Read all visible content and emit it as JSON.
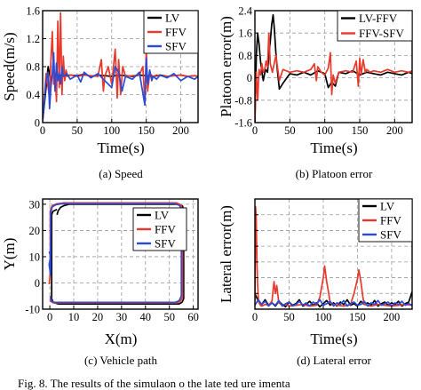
{
  "chart_data": [
    {
      "id": "a",
      "type": "line",
      "caption": "(a)  Speed",
      "xlabel": "Time(s)",
      "ylabel": "Speed(m/s)",
      "xlim": [
        0,
        225
      ],
      "ylim": [
        0,
        1.6
      ],
      "xticks": [
        0,
        50,
        100,
        150,
        200
      ],
      "yticks": [
        0,
        0.4,
        0.8,
        1.2,
        1.6
      ],
      "ytick_labels": [
        "0",
        "0.4",
        "0.8",
        "1.2",
        "1.6"
      ],
      "grid": true,
      "legend": "top-right",
      "series": [
        {
          "name": "LV",
          "color": "#000000",
          "x": [
            0,
            5,
            8,
            10,
            12,
            14,
            16,
            18,
            20,
            25,
            30,
            40,
            50,
            60,
            70,
            80,
            90,
            100,
            110,
            120,
            130,
            140,
            150,
            160,
            170,
            180,
            190,
            200,
            210,
            220,
            225
          ],
          "y": [
            0.02,
            0.5,
            0.8,
            0.7,
            0.6,
            0.68,
            0.66,
            0.7,
            0.67,
            0.68,
            0.66,
            0.68,
            0.67,
            0.69,
            0.66,
            0.68,
            0.67,
            0.66,
            0.68,
            0.67,
            0.66,
            0.68,
            0.67,
            0.66,
            0.68,
            0.66,
            0.67,
            0.68,
            0.66,
            0.67,
            0.66
          ]
        },
        {
          "name": "FFV",
          "color": "#e8392c",
          "x": [
            0,
            5,
            8,
            10,
            12,
            14,
            16,
            18,
            20,
            22,
            24,
            26,
            28,
            30,
            32,
            34,
            36,
            40,
            45,
            50,
            60,
            70,
            80,
            85,
            88,
            90,
            95,
            100,
            105,
            108,
            110,
            113,
            116,
            120,
            130,
            140,
            145,
            148,
            150,
            152,
            155,
            160,
            165,
            170,
            180,
            190,
            200,
            210,
            220,
            225
          ],
          "y": [
            0.02,
            0.7,
            0.5,
            0.35,
            0.9,
            1.3,
            0.55,
            0.7,
            0.3,
            1.45,
            0.5,
            1.57,
            0.4,
            0.95,
            0.6,
            0.75,
            0.66,
            0.68,
            0.67,
            0.66,
            0.68,
            0.67,
            0.66,
            0.9,
            0.45,
            0.66,
            0.8,
            0.55,
            1.05,
            0.35,
            0.9,
            0.4,
            0.8,
            0.66,
            0.67,
            0.68,
            0.8,
            0.3,
            1.05,
            0.45,
            0.7,
            0.66,
            0.68,
            0.67,
            0.66,
            0.67,
            0.68,
            0.66,
            0.67,
            0.66
          ]
        },
        {
          "name": "SFV",
          "color": "#2a4bd7",
          "x": [
            0,
            5,
            8,
            10,
            12,
            14,
            16,
            18,
            20,
            22,
            24,
            26,
            28,
            30,
            35,
            40,
            50,
            55,
            60,
            70,
            80,
            90,
            100,
            105,
            110,
            115,
            120,
            130,
            140,
            148,
            150,
            152,
            155,
            158,
            160,
            165,
            170,
            180,
            190,
            200,
            210,
            220,
            225
          ],
          "y": [
            0.02,
            0.6,
            0.72,
            0.2,
            0.5,
            0.7,
            1.0,
            0.45,
            0.85,
            0.6,
            0.7,
            0.55,
            0.8,
            0.66,
            0.7,
            0.62,
            0.68,
            0.58,
            0.72,
            0.64,
            0.7,
            0.6,
            0.5,
            0.8,
            0.72,
            0.45,
            0.66,
            0.62,
            0.72,
            0.25,
            0.92,
            0.55,
            0.75,
            0.6,
            0.66,
            0.62,
            0.68,
            0.64,
            0.7,
            0.6,
            0.66,
            0.62,
            0.66
          ]
        }
      ]
    },
    {
      "id": "b",
      "type": "line",
      "caption": "(b)  Platoon error",
      "xlabel": "Time(s)",
      "ylabel": "Platoon error(m)",
      "xlim": [
        0,
        225
      ],
      "ylim": [
        -1.6,
        2.4
      ],
      "xticks": [
        0,
        50,
        100,
        150,
        200
      ],
      "yticks": [
        -1.6,
        -0.8,
        0,
        0.8,
        1.6,
        2.4
      ],
      "ytick_labels": [
        "-1.6",
        "-0.8",
        "0",
        "0.8",
        "1.6",
        "2.4"
      ],
      "grid": true,
      "legend": "top-right",
      "series": [
        {
          "name": "LV-FFV",
          "color": "#000000",
          "x": [
            0,
            2,
            4,
            6,
            8,
            10,
            12,
            15,
            18,
            20,
            22,
            24,
            26,
            28,
            30,
            32,
            35,
            40,
            50,
            60,
            70,
            80,
            90,
            100,
            105,
            110,
            115,
            120,
            130,
            140,
            150,
            160,
            170,
            180,
            190,
            200,
            210,
            220,
            225
          ],
          "y": [
            -1.6,
            0.8,
            1.6,
            1.2,
            0.6,
            0.2,
            -0.1,
            0.3,
            0.2,
            0.8,
            1.3,
            1.9,
            2.25,
            1.7,
            0.9,
            0.3,
            -0.4,
            -0.2,
            0.15,
            0.1,
            0.2,
            0.1,
            0.25,
            0.15,
            -0.35,
            -0.15,
            -0.3,
            0.2,
            0.15,
            0.25,
            0.1,
            0.2,
            0.15,
            0.1,
            0.2,
            0.15,
            0.1,
            0.2,
            0.15
          ]
        },
        {
          "name": "FFV-SFV",
          "color": "#e8392c",
          "x": [
            0,
            2,
            4,
            6,
            8,
            10,
            12,
            14,
            16,
            18,
            20,
            22,
            25,
            30,
            35,
            40,
            50,
            60,
            70,
            80,
            85,
            88,
            90,
            95,
            100,
            105,
            108,
            110,
            112,
            115,
            120,
            130,
            140,
            145,
            148,
            150,
            152,
            155,
            158,
            160,
            165,
            170,
            180,
            190,
            200,
            210,
            220,
            225
          ],
          "y": [
            -1.5,
            0.2,
            -0.8,
            0.3,
            0.1,
            0.5,
            0.2,
            0.3,
            0.6,
            0.4,
            1.6,
            0.5,
            0.2,
            0.8,
            -0.1,
            0.3,
            0.2,
            0.25,
            0.2,
            0.3,
            0.5,
            -0.1,
            0.4,
            0.2,
            0.1,
            0.35,
            0.9,
            -0.6,
            0.1,
            -0.2,
            0.2,
            0.25,
            0.2,
            0.6,
            -0.3,
            0.7,
            0.1,
            0.65,
            0.2,
            0.3,
            0.2,
            0.25,
            0.2,
            0.3,
            0.2,
            0.25,
            0.2,
            0.25
          ]
        }
      ]
    },
    {
      "id": "c",
      "type": "line",
      "caption": "(c)  Vehicle path",
      "xlabel": "X(m)",
      "ylabel": "Y(m)",
      "xlim": [
        -3,
        62
      ],
      "ylim": [
        -10,
        32
      ],
      "xticks": [
        0,
        10,
        20,
        30,
        40,
        50,
        60
      ],
      "yticks": [
        -10,
        0,
        10,
        20,
        30
      ],
      "ytick_labels": [
        "-10",
        "0",
        "10",
        "20",
        "30"
      ],
      "grid": true,
      "legend": "middle-right",
      "series": [
        {
          "name": "LV",
          "color": "#000000",
          "x": [
            3,
            3.5,
            4.5,
            6,
            8,
            54,
            55.5,
            56,
            56,
            55.3,
            54,
            3.5,
            1.5,
            0.8,
            0.8,
            1.3,
            2.5,
            3
          ],
          "y": [
            26,
            27.5,
            28.8,
            29.5,
            30,
            30,
            29.3,
            28,
            -6,
            -7.4,
            -8,
            -8,
            -7.5,
            -6,
            26,
            27.3,
            27.8,
            28
          ]
        },
        {
          "name": "FFV",
          "color": "#e8392c",
          "x": [
            -0.3,
            0,
            0.2,
            0.2,
            1,
            3,
            6,
            53,
            54.8,
            55.5,
            55.5,
            54.6,
            53,
            1.5,
            0.4,
            0.2
          ],
          "y": [
            -0.5,
            2,
            5,
            27.5,
            29.5,
            30.2,
            30.5,
            30.5,
            29.8,
            28,
            -5.5,
            -7,
            -7.6,
            -7.6,
            -7,
            -5
          ]
        },
        {
          "name": "SFV",
          "color": "#2a4bd7",
          "x": [
            -0.2,
            0.3,
            -0.3,
            0.3,
            0.4,
            1,
            2.5,
            5,
            52.5,
            54.3,
            55,
            55,
            54,
            52.5,
            1.8,
            0.6,
            0.4
          ],
          "y": [
            12,
            10,
            7,
            3,
            27,
            29,
            29.8,
            30.2,
            30.2,
            29.5,
            27.7,
            -5,
            -6.8,
            -7.4,
            -7.4,
            -6.8,
            -5
          ]
        }
      ]
    },
    {
      "id": "d",
      "type": "line",
      "caption": "(d)  Lateral error",
      "xlabel": "Time(s)",
      "ylabel": "Lateral error(m)",
      "xlim": [
        0,
        230
      ],
      "ylim": [
        0,
        1.4
      ],
      "xticks": [
        0,
        50,
        100,
        150,
        200
      ],
      "yticks": [
        0,
        0.2,
        0.4,
        0.6,
        0.8,
        1.0,
        1.2,
        1.4
      ],
      "ytick_labels": [
        "",
        "",
        "",
        "",
        "",
        "",
        "",
        ""
      ],
      "grid": true,
      "legend": "top-right",
      "series": [
        {
          "name": "LV",
          "color": "#000000",
          "x": [
            0,
            5,
            10,
            15,
            20,
            25,
            30,
            35,
            40,
            45,
            50,
            55,
            60,
            65,
            70,
            75,
            80,
            85,
            90,
            95,
            100,
            105,
            110,
            115,
            120,
            125,
            130,
            135,
            140,
            145,
            150,
            155,
            160,
            165,
            170,
            175,
            180,
            185,
            190,
            195,
            200,
            205,
            210,
            215,
            220,
            225,
            230
          ],
          "y": [
            0.2,
            0.1,
            0.06,
            0.12,
            0.05,
            0.08,
            0.04,
            0.1,
            0.06,
            0.03,
            0.09,
            0.05,
            0.07,
            0.12,
            0.04,
            0.06,
            0.1,
            0.05,
            0.08,
            0.03,
            0.07,
            0.11,
            0.05,
            0.08,
            0.04,
            0.09,
            0.06,
            0.12,
            0.05,
            0.07,
            0.04,
            0.1,
            0.06,
            0.08,
            0.05,
            0.11,
            0.04,
            0.07,
            0.09,
            0.05,
            0.08,
            0.06,
            0.1,
            0.04,
            0.07,
            0.09,
            0.22
          ]
        },
        {
          "name": "FFV",
          "color": "#e8392c",
          "x": [
            0,
            1,
            2,
            3,
            4,
            5,
            6,
            8,
            10,
            15,
            20,
            25,
            28,
            30,
            32,
            35,
            40,
            45,
            50,
            60,
            70,
            80,
            90,
            95,
            100,
            102,
            105,
            108,
            110,
            115,
            120,
            130,
            140,
            145,
            150,
            152,
            155,
            158,
            160,
            165,
            170,
            180,
            190,
            200,
            210,
            220,
            230
          ],
          "y": [
            0.1,
            1.3,
            1.15,
            0.6,
            0.3,
            0.15,
            0.08,
            0.05,
            0.04,
            0.06,
            0.05,
            0.1,
            0.35,
            0.2,
            0.3,
            0.08,
            0.05,
            0.06,
            0.04,
            0.05,
            0.06,
            0.04,
            0.05,
            0.15,
            0.4,
            0.55,
            0.35,
            0.2,
            0.08,
            0.06,
            0.05,
            0.04,
            0.06,
            0.2,
            0.38,
            0.5,
            0.35,
            0.15,
            0.06,
            0.05,
            0.04,
            0.06,
            0.05,
            0.04,
            0.05,
            0.06,
            0.05
          ]
        },
        {
          "name": "SFV",
          "color": "#2a4bd7",
          "x": [
            0,
            5,
            10,
            15,
            20,
            25,
            30,
            35,
            40,
            45,
            50,
            55,
            60,
            65,
            70,
            75,
            80,
            85,
            90,
            95,
            100,
            105,
            110,
            115,
            120,
            125,
            130,
            135,
            140,
            145,
            150,
            155,
            160,
            165,
            170,
            175,
            180,
            185,
            190,
            195,
            200,
            205,
            210,
            215,
            220,
            225,
            230
          ],
          "y": [
            0.05,
            0.12,
            0.06,
            0.1,
            0.04,
            0.08,
            0.05,
            0.11,
            0.04,
            0.07,
            0.09,
            0.04,
            0.06,
            0.1,
            0.05,
            0.08,
            0.04,
            0.09,
            0.06,
            0.12,
            0.05,
            0.07,
            0.1,
            0.04,
            0.08,
            0.06,
            0.11,
            0.04,
            0.07,
            0.09,
            0.05,
            0.06,
            0.1,
            0.04,
            0.08,
            0.06,
            0.11,
            0.05,
            0.07,
            0.09,
            0.04,
            0.08,
            0.06,
            0.1,
            0.05,
            0.07,
            0.05
          ]
        }
      ]
    }
  ],
  "footer_text": "Fig. 8.   The results of the simulaon  o the  late    ted    ure    imenta"
}
